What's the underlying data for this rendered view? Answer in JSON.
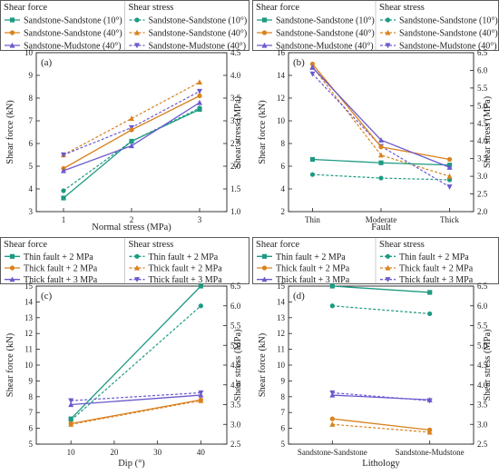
{
  "colors": {
    "teal": "#1e9a82",
    "orange": "#d9821d",
    "purple": "#6a5acd"
  },
  "chart_data": [
    {
      "id": "a",
      "type": "line",
      "panel_label": "(a)",
      "xlabel": "Normal stress (MPa)",
      "ylabel_left": "Shear force (kN)",
      "ylabel_right": "Shear stress (MPa)",
      "x_type": "numeric",
      "x": [
        1,
        2,
        3
      ],
      "xticks": [
        1,
        2,
        3
      ],
      "xlim": [
        0.6,
        3.4
      ],
      "ylim_left": [
        3,
        10
      ],
      "yticks_left": [
        3,
        4,
        5,
        6,
        7,
        8,
        9,
        10
      ],
      "ylim_right": [
        1.0,
        4.5
      ],
      "yticks_right": [
        "1.0",
        "1.5",
        "2.0",
        "2.5",
        "3.0",
        "3.5",
        "4.0",
        "4.5"
      ],
      "legend_left_title": "Shear force",
      "legend_right_title": "Shear stress",
      "series_force": [
        {
          "name": "Sandstone-Sandstone (10°)",
          "color": "teal",
          "values": [
            3.6,
            6.1,
            7.5
          ]
        },
        {
          "name": "Sandstone-Sandstone (40°)",
          "color": "orange",
          "values": [
            4.9,
            6.6,
            8.1
          ]
        },
        {
          "name": "Sandstone-Mudstone (40°)",
          "color": "purple",
          "values": [
            4.8,
            5.9,
            7.8
          ]
        }
      ],
      "series_stress": [
        {
          "name": "Sandstone-Sandstone (10°)",
          "color": "teal",
          "values": [
            1.46,
            2.55,
            3.28
          ]
        },
        {
          "name": "Sandstone-Sandstone (40°)",
          "color": "orange",
          "values": [
            2.25,
            3.05,
            3.85
          ]
        },
        {
          "name": "Sandstone-Mudstone (40°)",
          "color": "purple",
          "values": [
            2.25,
            2.85,
            3.65
          ]
        }
      ]
    },
    {
      "id": "b",
      "type": "line",
      "panel_label": "(b)",
      "xlabel": "Fault",
      "ylabel_left": "Shear force (kN)",
      "ylabel_right": "Shear stress (MPa)",
      "x_type": "category",
      "categories": [
        "Thin",
        "Moderate",
        "Thick"
      ],
      "xlim": [
        -0.35,
        2.35
      ],
      "ylim_left": [
        2,
        16
      ],
      "yticks_left": [
        2,
        4,
        6,
        8,
        10,
        12,
        14,
        16
      ],
      "ylim_right": [
        2.0,
        6.5
      ],
      "yticks_right": [
        "2.0",
        "2.5",
        "3.0",
        "3.5",
        "4.0",
        "4.5",
        "5.0",
        "5.5",
        "6.0",
        "6.5"
      ],
      "legend_left_title": "Shear force",
      "legend_right_title": "Shear stress",
      "series_force": [
        {
          "name": "Sandstone-Sandstone (10°)",
          "color": "teal",
          "values": [
            6.6,
            6.3,
            6.1
          ]
        },
        {
          "name": "Sandstone-Sandstone (40°)",
          "color": "orange",
          "values": [
            15.0,
            7.7,
            6.6
          ]
        },
        {
          "name": "Sandstone-Mudstone (40°)",
          "color": "purple",
          "values": [
            14.7,
            8.3,
            5.9
          ]
        }
      ],
      "series_stress": [
        {
          "name": "Sandstone-Sandstone (10°)",
          "color": "teal",
          "values": [
            3.05,
            2.95,
            2.9
          ]
        },
        {
          "name": "Sandstone-Sandstone (40°)",
          "color": "orange",
          "values": [
            6.1,
            3.6,
            3.0
          ]
        },
        {
          "name": "Sandstone-Mudstone (40°)",
          "color": "purple",
          "values": [
            5.9,
            3.85,
            2.7
          ]
        }
      ]
    },
    {
      "id": "c",
      "type": "line",
      "panel_label": "(c)",
      "xlabel": "Dip (°)",
      "ylabel_left": "Shear force (kN)",
      "ylabel_right": "Shear stress (MPa)",
      "x_type": "numeric",
      "x": [
        10,
        40
      ],
      "xticks": [
        10,
        20,
        30,
        40
      ],
      "xlim": [
        2,
        46
      ],
      "ylim_left": [
        5,
        15
      ],
      "yticks_left": [
        5,
        6,
        7,
        8,
        9,
        10,
        11,
        12,
        13,
        14,
        15
      ],
      "ylim_right": [
        2.5,
        6.5
      ],
      "yticks_right": [
        "2.5",
        "3.0",
        "3.5",
        "4.0",
        "4.5",
        "5.0",
        "5.5",
        "6.0",
        "6.5"
      ],
      "legend_left_title": "Shear force",
      "legend_right_title": "Shear stress",
      "series_force": [
        {
          "name": "Thin fault + 2 MPa",
          "color": "teal",
          "values": [
            6.6,
            15.0
          ]
        },
        {
          "name": "Thick fault + 2 MPa",
          "color": "orange",
          "values": [
            6.3,
            7.8
          ]
        },
        {
          "name": "Thick fault + 3 MPa",
          "color": "purple",
          "values": [
            7.5,
            8.1
          ]
        }
      ],
      "series_stress": [
        {
          "name": "Thin fault + 2 MPa",
          "color": "teal",
          "values": [
            3.1,
            6.0
          ]
        },
        {
          "name": "Thick fault + 2 MPa",
          "color": "orange",
          "values": [
            3.0,
            3.6
          ]
        },
        {
          "name": "Thick fault + 3 MPa",
          "color": "purple",
          "values": [
            3.6,
            3.8
          ]
        }
      ]
    },
    {
      "id": "d",
      "type": "line",
      "panel_label": "(d)",
      "xlabel": "Lithology",
      "ylabel_left": "Shear force (kN)",
      "ylabel_right": "Shear stress (MPa)",
      "x_type": "category",
      "categories": [
        "Sandstone-Sandstone",
        "Sandstone-Mudstone"
      ],
      "xlim": [
        -0.45,
        1.45
      ],
      "ylim_left": [
        5,
        15
      ],
      "yticks_left": [
        5,
        6,
        7,
        8,
        9,
        10,
        11,
        12,
        13,
        14,
        15
      ],
      "ylim_right": [
        2.5,
        6.5
      ],
      "yticks_right": [
        "2.5",
        "3.0",
        "3.5",
        "4.0",
        "4.5",
        "5.0",
        "5.5",
        "6.0",
        "6.5"
      ],
      "legend_left_title": "Shear force",
      "legend_right_title": "Shear stress",
      "series_force": [
        {
          "name": "Thin fault + 2 MPa",
          "color": "teal",
          "values": [
            15.0,
            14.6
          ]
        },
        {
          "name": "Thick fault + 2 MPa",
          "color": "orange",
          "values": [
            6.6,
            5.9
          ]
        },
        {
          "name": "Thick fault + 3 MPa",
          "color": "purple",
          "values": [
            8.1,
            7.8
          ]
        }
      ],
      "series_stress": [
        {
          "name": "Thin fault + 2 MPa",
          "color": "teal",
          "values": [
            6.0,
            5.8
          ]
        },
        {
          "name": "Thick fault + 2 MPa",
          "color": "orange",
          "values": [
            3.0,
            2.8
          ]
        },
        {
          "name": "Thick fault + 3 MPa",
          "color": "purple",
          "values": [
            3.8,
            3.6
          ]
        }
      ]
    }
  ]
}
